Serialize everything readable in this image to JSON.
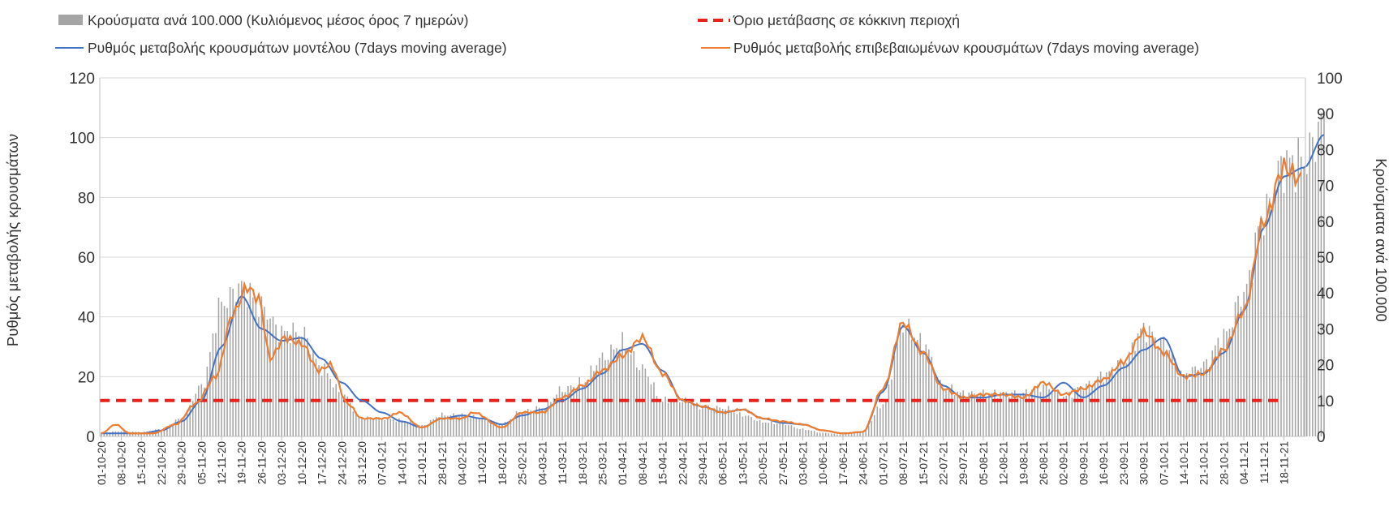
{
  "chart_data": {
    "type": "bar+line",
    "title": "",
    "left_axis": {
      "label": "Ρυθμός μεταβολής κρουσμάτων",
      "min": 0,
      "max": 120,
      "ticks": [
        0,
        20,
        40,
        60,
        80,
        100,
        120
      ]
    },
    "right_axis": {
      "label": "Κρούσματα ανά 100.000",
      "min": 0,
      "max": 100,
      "ticks": [
        0,
        10,
        20,
        30,
        40,
        50,
        60,
        70,
        80,
        90,
        100
      ]
    },
    "x_labels": [
      "01-10-20",
      "08-10-20",
      "15-10-20",
      "22-10-20",
      "29-10-20",
      "05-11-20",
      "12-11-20",
      "19-11-20",
      "26-11-20",
      "03-12-20",
      "10-12-20",
      "17-12-20",
      "24-12-20",
      "31-12-20",
      "07-01-21",
      "14-01-21",
      "21-01-21",
      "28-01-21",
      "04-02-21",
      "11-02-21",
      "18-02-21",
      "25-02-21",
      "04-03-21",
      "11-03-21",
      "18-03-21",
      "25-03-21",
      "01-04-21",
      "08-04-21",
      "15-04-21",
      "22-04-21",
      "29-04-21",
      "06-05-21",
      "13-05-21",
      "20-05-21",
      "27-05-21",
      "03-06-21",
      "10-06-21",
      "17-06-21",
      "24-06-21",
      "01-07-21",
      "08-07-21",
      "15-07-21",
      "22-07-21",
      "29-07-21",
      "05-08-21",
      "12-08-21",
      "19-08-21",
      "26-08-21",
      "02-09-21",
      "09-09-21",
      "16-09-21",
      "23-09-21",
      "30-09-21",
      "07-10-21",
      "14-10-21",
      "21-10-21",
      "28-10-21",
      "04-11-21",
      "11-11-21",
      "18-11-21"
    ],
    "threshold": {
      "name": "Όριο μετάβασης σε κόκκινη περιοχή",
      "value": 12,
      "axis": "left",
      "color": "#e8221c"
    },
    "series": [
      {
        "name": "Κρούσματα ανά 100.000 (Κυλιόμενος μέσος όρος 7 ημερών)",
        "type": "bar",
        "axis": "right",
        "color": "#a5a5a5",
        "keypoints": [
          [
            0,
            1
          ],
          [
            7,
            1.5
          ],
          [
            14,
            1.2
          ],
          [
            21,
            2
          ],
          [
            28,
            5
          ],
          [
            35,
            14
          ],
          [
            42,
            37
          ],
          [
            49,
            42
          ],
          [
            56,
            36
          ],
          [
            63,
            29
          ],
          [
            70,
            29
          ],
          [
            77,
            19
          ],
          [
            84,
            12
          ],
          [
            91,
            5
          ],
          [
            98,
            5
          ],
          [
            105,
            4.5
          ],
          [
            112,
            3
          ],
          [
            119,
            6
          ],
          [
            126,
            6
          ],
          [
            133,
            5
          ],
          [
            140,
            3.5
          ],
          [
            147,
            7
          ],
          [
            154,
            8
          ],
          [
            161,
            13
          ],
          [
            168,
            15
          ],
          [
            175,
            22
          ],
          [
            182,
            26
          ],
          [
            189,
            19
          ],
          [
            196,
            10
          ],
          [
            203,
            10
          ],
          [
            210,
            8
          ],
          [
            217,
            8
          ],
          [
            224,
            6
          ],
          [
            231,
            4
          ],
          [
            238,
            3.5
          ],
          [
            245,
            2
          ],
          [
            252,
            1
          ],
          [
            259,
            0.5
          ],
          [
            266,
            1.5
          ],
          [
            273,
            9
          ],
          [
            280,
            31
          ],
          [
            287,
            26
          ],
          [
            294,
            14
          ],
          [
            301,
            12
          ],
          [
            308,
            12
          ],
          [
            315,
            12
          ],
          [
            322,
            12
          ],
          [
            329,
            14
          ],
          [
            336,
            11
          ],
          [
            343,
            14
          ],
          [
            350,
            17
          ],
          [
            357,
            21
          ],
          [
            364,
            30
          ],
          [
            371,
            26
          ],
          [
            378,
            17
          ],
          [
            385,
            20
          ],
          [
            392,
            28
          ],
          [
            399,
            40
          ],
          [
            406,
            62
          ],
          [
            413,
            76
          ],
          [
            420,
            77
          ],
          [
            427,
            88
          ]
        ]
      },
      {
        "name": "Ρυθμός μεταβολής κρουσμάτων μοντέλου (7days moving average)",
        "type": "line",
        "axis": "left",
        "color": "#4472c4",
        "keypoints": [
          [
            0,
            1
          ],
          [
            14,
            1
          ],
          [
            21,
            2
          ],
          [
            28,
            5
          ],
          [
            35,
            12
          ],
          [
            42,
            30
          ],
          [
            49,
            47
          ],
          [
            56,
            36
          ],
          [
            63,
            32
          ],
          [
            70,
            33
          ],
          [
            77,
            26
          ],
          [
            84,
            18
          ],
          [
            91,
            12
          ],
          [
            98,
            8
          ],
          [
            105,
            5
          ],
          [
            112,
            3
          ],
          [
            119,
            6
          ],
          [
            126,
            7
          ],
          [
            133,
            6
          ],
          [
            140,
            4
          ],
          [
            147,
            7
          ],
          [
            154,
            9
          ],
          [
            161,
            12
          ],
          [
            168,
            16
          ],
          [
            175,
            21
          ],
          [
            182,
            29
          ],
          [
            189,
            31
          ],
          [
            196,
            22
          ],
          [
            203,
            12
          ],
          [
            210,
            10
          ],
          [
            217,
            8
          ],
          [
            224,
            9
          ],
          [
            231,
            6
          ],
          [
            238,
            4.5
          ],
          [
            245,
            4
          ],
          [
            252,
            2
          ],
          [
            259,
            1
          ],
          [
            266,
            1.5
          ],
          [
            273,
            15
          ],
          [
            280,
            37
          ],
          [
            287,
            28
          ],
          [
            294,
            17
          ],
          [
            301,
            13
          ],
          [
            308,
            13
          ],
          [
            315,
            14
          ],
          [
            322,
            14
          ],
          [
            329,
            13
          ],
          [
            336,
            18
          ],
          [
            343,
            13
          ],
          [
            350,
            17
          ],
          [
            357,
            23
          ],
          [
            364,
            29
          ],
          [
            371,
            33
          ],
          [
            378,
            20
          ],
          [
            385,
            21
          ],
          [
            392,
            28
          ],
          [
            399,
            42
          ],
          [
            406,
            70
          ],
          [
            413,
            87
          ],
          [
            420,
            90
          ],
          [
            427,
            101
          ]
        ]
      },
      {
        "name": "Ρυθμός μεταβολής επιβεβαιωμένων κρουσμάτων (7days moving average)",
        "type": "line",
        "axis": "left",
        "color": "#ed7d31",
        "keypoints": [
          [
            0,
            1
          ],
          [
            5,
            4
          ],
          [
            10,
            1
          ],
          [
            18,
            1
          ],
          [
            26,
            4
          ],
          [
            33,
            11
          ],
          [
            40,
            20
          ],
          [
            46,
            41
          ],
          [
            51,
            50
          ],
          [
            55,
            46
          ],
          [
            59,
            26
          ],
          [
            64,
            33
          ],
          [
            70,
            31
          ],
          [
            76,
            22
          ],
          [
            80,
            24
          ],
          [
            86,
            11
          ],
          [
            91,
            6
          ],
          [
            99,
            6
          ],
          [
            104,
            8
          ],
          [
            112,
            3
          ],
          [
            119,
            6
          ],
          [
            126,
            6
          ],
          [
            130,
            8
          ],
          [
            140,
            3
          ],
          [
            147,
            8
          ],
          [
            154,
            8
          ],
          [
            161,
            13
          ],
          [
            168,
            17
          ],
          [
            175,
            22
          ],
          [
            182,
            27
          ],
          [
            189,
            33
          ],
          [
            196,
            21
          ],
          [
            203,
            12
          ],
          [
            210,
            10
          ],
          [
            217,
            8
          ],
          [
            224,
            9
          ],
          [
            231,
            6
          ],
          [
            238,
            5
          ],
          [
            245,
            4
          ],
          [
            252,
            2
          ],
          [
            259,
            1
          ],
          [
            266,
            1.5
          ],
          [
            273,
            16
          ],
          [
            280,
            38
          ],
          [
            287,
            28
          ],
          [
            294,
            16
          ],
          [
            301,
            13
          ],
          [
            308,
            14
          ],
          [
            315,
            14
          ],
          [
            322,
            13
          ],
          [
            329,
            18
          ],
          [
            336,
            14
          ],
          [
            343,
            16
          ],
          [
            350,
            19
          ],
          [
            357,
            25
          ],
          [
            364,
            35
          ],
          [
            371,
            28
          ],
          [
            378,
            20
          ],
          [
            385,
            21
          ],
          [
            392,
            29
          ],
          [
            399,
            42
          ],
          [
            406,
            72
          ],
          [
            413,
            90
          ],
          [
            419,
            86
          ]
        ]
      }
    ]
  }
}
